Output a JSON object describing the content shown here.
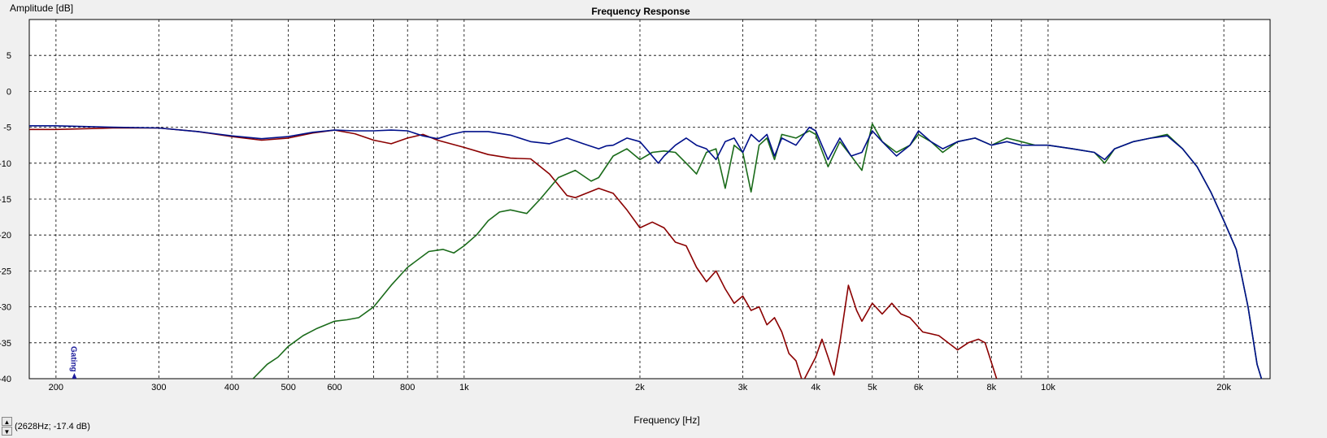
{
  "status": {
    "readout": "(2628Hz; -17.4 dB)"
  },
  "icons": {
    "spin_up": "triangle-up",
    "spin_down": "triangle-down"
  },
  "chart_data": {
    "type": "line",
    "title": "Frequency Response",
    "xlabel": "Frequency [Hz]",
    "ylabel": "Amplitude [dB]",
    "xscale": "log",
    "xlim": [
      180,
      24000
    ],
    "ylim": [
      -40,
      10
    ],
    "grid": true,
    "x_ticks": [
      {
        "v": 200,
        "label": "200"
      },
      {
        "v": 300,
        "label": "300"
      },
      {
        "v": 400,
        "label": "400"
      },
      {
        "v": 500,
        "label": "500"
      },
      {
        "v": 600,
        "label": "600"
      },
      {
        "v": 800,
        "label": "800"
      },
      {
        "v": 1000,
        "label": "1k"
      },
      {
        "v": 2000,
        "label": "2k"
      },
      {
        "v": 3000,
        "label": "3k"
      },
      {
        "v": 4000,
        "label": "4k"
      },
      {
        "v": 5000,
        "label": "5k"
      },
      {
        "v": 6000,
        "label": "6k"
      },
      {
        "v": 8000,
        "label": "8k"
      },
      {
        "v": 10000,
        "label": "10k"
      },
      {
        "v": 20000,
        "label": "20k"
      }
    ],
    "x_minor_ticks": [
      700,
      900,
      7000,
      9000
    ],
    "y_ticks": [
      {
        "v": 5,
        "label": "5"
      },
      {
        "v": 0,
        "label": "0"
      },
      {
        "v": -5,
        "label": "-5"
      },
      {
        "v": -10,
        "label": "-10"
      },
      {
        "v": -15,
        "label": "-15"
      },
      {
        "v": -20,
        "label": "-20"
      },
      {
        "v": -25,
        "label": "-25"
      },
      {
        "v": -30,
        "label": "-30"
      },
      {
        "v": -35,
        "label": "-35"
      },
      {
        "v": -40,
        "label": "-40"
      }
    ],
    "marker": {
      "label": "Gating",
      "x": 215
    },
    "series": [
      {
        "color": "#8b0000",
        "points": [
          [
            180,
            -5.3
          ],
          [
            200,
            -5.3
          ],
          [
            250,
            -5.1
          ],
          [
            300,
            -5.1
          ],
          [
            350,
            -5.6
          ],
          [
            400,
            -6.3
          ],
          [
            450,
            -6.8
          ],
          [
            500,
            -6.5
          ],
          [
            550,
            -5.8
          ],
          [
            600,
            -5.4
          ],
          [
            650,
            -5.9
          ],
          [
            700,
            -6.8
          ],
          [
            750,
            -7.3
          ],
          [
            800,
            -6.5
          ],
          [
            850,
            -6.0
          ],
          [
            900,
            -6.8
          ],
          [
            1000,
            -7.8
          ],
          [
            1100,
            -8.8
          ],
          [
            1200,
            -9.3
          ],
          [
            1300,
            -9.4
          ],
          [
            1400,
            -11.5
          ],
          [
            1500,
            -14.5
          ],
          [
            1550,
            -14.8
          ],
          [
            1700,
            -13.5
          ],
          [
            1800,
            -14.2
          ],
          [
            1900,
            -16.5
          ],
          [
            2000,
            -19.0
          ],
          [
            2100,
            -18.2
          ],
          [
            2200,
            -19.0
          ],
          [
            2300,
            -21.0
          ],
          [
            2400,
            -21.5
          ],
          [
            2500,
            -24.5
          ],
          [
            2600,
            -26.5
          ],
          [
            2700,
            -25.0
          ],
          [
            2800,
            -27.5
          ],
          [
            2900,
            -29.5
          ],
          [
            3000,
            -28.5
          ],
          [
            3100,
            -30.5
          ],
          [
            3200,
            -30.0
          ],
          [
            3300,
            -32.5
          ],
          [
            3400,
            -31.5
          ],
          [
            3500,
            -33.5
          ],
          [
            3600,
            -36.5
          ],
          [
            3700,
            -37.5
          ],
          [
            3800,
            -40.5
          ],
          [
            4000,
            -37.0
          ],
          [
            4100,
            -34.5
          ],
          [
            4200,
            -37.0
          ],
          [
            4300,
            -39.5
          ],
          [
            4400,
            -35.0
          ],
          [
            4550,
            -27.0
          ],
          [
            4700,
            -30.5
          ],
          [
            4800,
            -32.0
          ],
          [
            5000,
            -29.5
          ],
          [
            5200,
            -31.0
          ],
          [
            5400,
            -29.5
          ],
          [
            5600,
            -31.0
          ],
          [
            5800,
            -31.5
          ],
          [
            6100,
            -33.5
          ],
          [
            6500,
            -34.0
          ],
          [
            7000,
            -36.0
          ],
          [
            7300,
            -35.0
          ],
          [
            7600,
            -34.5
          ],
          [
            7800,
            -35.0
          ],
          [
            8200,
            -40.5
          ]
        ]
      },
      {
        "color": "#1a6b1a",
        "points": [
          [
            435,
            -40.0
          ],
          [
            460,
            -38.0
          ],
          [
            480,
            -37.0
          ],
          [
            500,
            -35.5
          ],
          [
            530,
            -34.0
          ],
          [
            560,
            -33.0
          ],
          [
            600,
            -32.0
          ],
          [
            630,
            -31.8
          ],
          [
            660,
            -31.5
          ],
          [
            700,
            -30.0
          ],
          [
            750,
            -27.0
          ],
          [
            800,
            -24.5
          ],
          [
            870,
            -22.3
          ],
          [
            920,
            -22.0
          ],
          [
            960,
            -22.5
          ],
          [
            1000,
            -21.5
          ],
          [
            1050,
            -20.0
          ],
          [
            1100,
            -18.0
          ],
          [
            1150,
            -16.8
          ],
          [
            1200,
            -16.5
          ],
          [
            1280,
            -17.0
          ],
          [
            1350,
            -15.0
          ],
          [
            1450,
            -12.0
          ],
          [
            1550,
            -11.0
          ],
          [
            1650,
            -12.5
          ],
          [
            1700,
            -12.0
          ],
          [
            1800,
            -9.0
          ],
          [
            1900,
            -8.0
          ],
          [
            2000,
            -9.5
          ],
          [
            2100,
            -8.5
          ],
          [
            2200,
            -8.3
          ],
          [
            2300,
            -8.5
          ],
          [
            2400,
            -10.0
          ],
          [
            2500,
            -11.5
          ],
          [
            2600,
            -8.5
          ],
          [
            2700,
            -8.0
          ],
          [
            2800,
            -13.5
          ],
          [
            2900,
            -7.5
          ],
          [
            3000,
            -8.5
          ],
          [
            3100,
            -14.0
          ],
          [
            3200,
            -7.5
          ],
          [
            3300,
            -6.5
          ],
          [
            3400,
            -9.5
          ],
          [
            3500,
            -6.0
          ],
          [
            3700,
            -6.5
          ],
          [
            3900,
            -5.5
          ],
          [
            4000,
            -6.0
          ],
          [
            4200,
            -10.5
          ],
          [
            4400,
            -7.0
          ],
          [
            4600,
            -9.0
          ],
          [
            4800,
            -11.0
          ],
          [
            5000,
            -4.5
          ],
          [
            5200,
            -7.0
          ],
          [
            5500,
            -8.5
          ],
          [
            5800,
            -7.5
          ],
          [
            6000,
            -6.0
          ],
          [
            6300,
            -7.0
          ],
          [
            6600,
            -8.5
          ],
          [
            7000,
            -7.0
          ],
          [
            7500,
            -6.5
          ],
          [
            8000,
            -7.5
          ],
          [
            8500,
            -6.5
          ],
          [
            9000,
            -7.0
          ],
          [
            9500,
            -7.5
          ],
          [
            10000,
            -7.5
          ],
          [
            11000,
            -8.0
          ],
          [
            12000,
            -8.5
          ],
          [
            12500,
            -10.0
          ],
          [
            13000,
            -8.0
          ],
          [
            14000,
            -7.0
          ],
          [
            15000,
            -6.5
          ],
          [
            16000,
            -6.0
          ],
          [
            17000,
            -8.0
          ],
          [
            18000,
            -10.5
          ],
          [
            19000,
            -14.0
          ],
          [
            20000,
            -18.0
          ],
          [
            21000,
            -22.0
          ],
          [
            22000,
            -30.0
          ],
          [
            22800,
            -38.0
          ],
          [
            23200,
            -40.0
          ]
        ]
      },
      {
        "color": "#00108a",
        "points": [
          [
            180,
            -4.8
          ],
          [
            200,
            -4.8
          ],
          [
            250,
            -5.0
          ],
          [
            300,
            -5.1
          ],
          [
            350,
            -5.6
          ],
          [
            400,
            -6.2
          ],
          [
            450,
            -6.6
          ],
          [
            500,
            -6.3
          ],
          [
            550,
            -5.7
          ],
          [
            600,
            -5.4
          ],
          [
            650,
            -5.5
          ],
          [
            700,
            -5.5
          ],
          [
            750,
            -5.4
          ],
          [
            800,
            -5.5
          ],
          [
            850,
            -6.2
          ],
          [
            900,
            -6.6
          ],
          [
            950,
            -6.0
          ],
          [
            1000,
            -5.6
          ],
          [
            1100,
            -5.6
          ],
          [
            1200,
            -6.1
          ],
          [
            1300,
            -7.0
          ],
          [
            1400,
            -7.3
          ],
          [
            1500,
            -6.5
          ],
          [
            1600,
            -7.3
          ],
          [
            1700,
            -8.0
          ],
          [
            1750,
            -7.6
          ],
          [
            1800,
            -7.5
          ],
          [
            1900,
            -6.5
          ],
          [
            2000,
            -7.0
          ],
          [
            2050,
            -8.0
          ],
          [
            2150,
            -10.0
          ],
          [
            2200,
            -9.0
          ],
          [
            2300,
            -7.5
          ],
          [
            2400,
            -6.5
          ],
          [
            2500,
            -7.5
          ],
          [
            2600,
            -8.0
          ],
          [
            2700,
            -9.5
          ],
          [
            2800,
            -7.0
          ],
          [
            2900,
            -6.5
          ],
          [
            3000,
            -8.5
          ],
          [
            3100,
            -6.0
          ],
          [
            3200,
            -7.0
          ],
          [
            3300,
            -6.0
          ],
          [
            3400,
            -9.0
          ],
          [
            3500,
            -6.5
          ],
          [
            3700,
            -7.5
          ],
          [
            3900,
            -5.0
          ],
          [
            4000,
            -5.5
          ],
          [
            4200,
            -9.5
          ],
          [
            4400,
            -6.5
          ],
          [
            4600,
            -9.0
          ],
          [
            4800,
            -8.5
          ],
          [
            5000,
            -5.5
          ],
          [
            5200,
            -7.0
          ],
          [
            5500,
            -9.0
          ],
          [
            5800,
            -7.5
          ],
          [
            6000,
            -5.5
          ],
          [
            6300,
            -7.0
          ],
          [
            6600,
            -8.0
          ],
          [
            7000,
            -7.0
          ],
          [
            7500,
            -6.5
          ],
          [
            8000,
            -7.5
          ],
          [
            8500,
            -7.0
          ],
          [
            9000,
            -7.5
          ],
          [
            9500,
            -7.5
          ],
          [
            10000,
            -7.5
          ],
          [
            11000,
            -8.0
          ],
          [
            12000,
            -8.5
          ],
          [
            12500,
            -9.5
          ],
          [
            13000,
            -8.0
          ],
          [
            14000,
            -7.0
          ],
          [
            15000,
            -6.5
          ],
          [
            16000,
            -6.2
          ],
          [
            17000,
            -8.0
          ],
          [
            18000,
            -10.5
          ],
          [
            19000,
            -14.0
          ],
          [
            20000,
            -18.0
          ],
          [
            21000,
            -22.0
          ],
          [
            22000,
            -30.0
          ],
          [
            22800,
            -38.0
          ],
          [
            23200,
            -40.0
          ]
        ]
      }
    ]
  }
}
